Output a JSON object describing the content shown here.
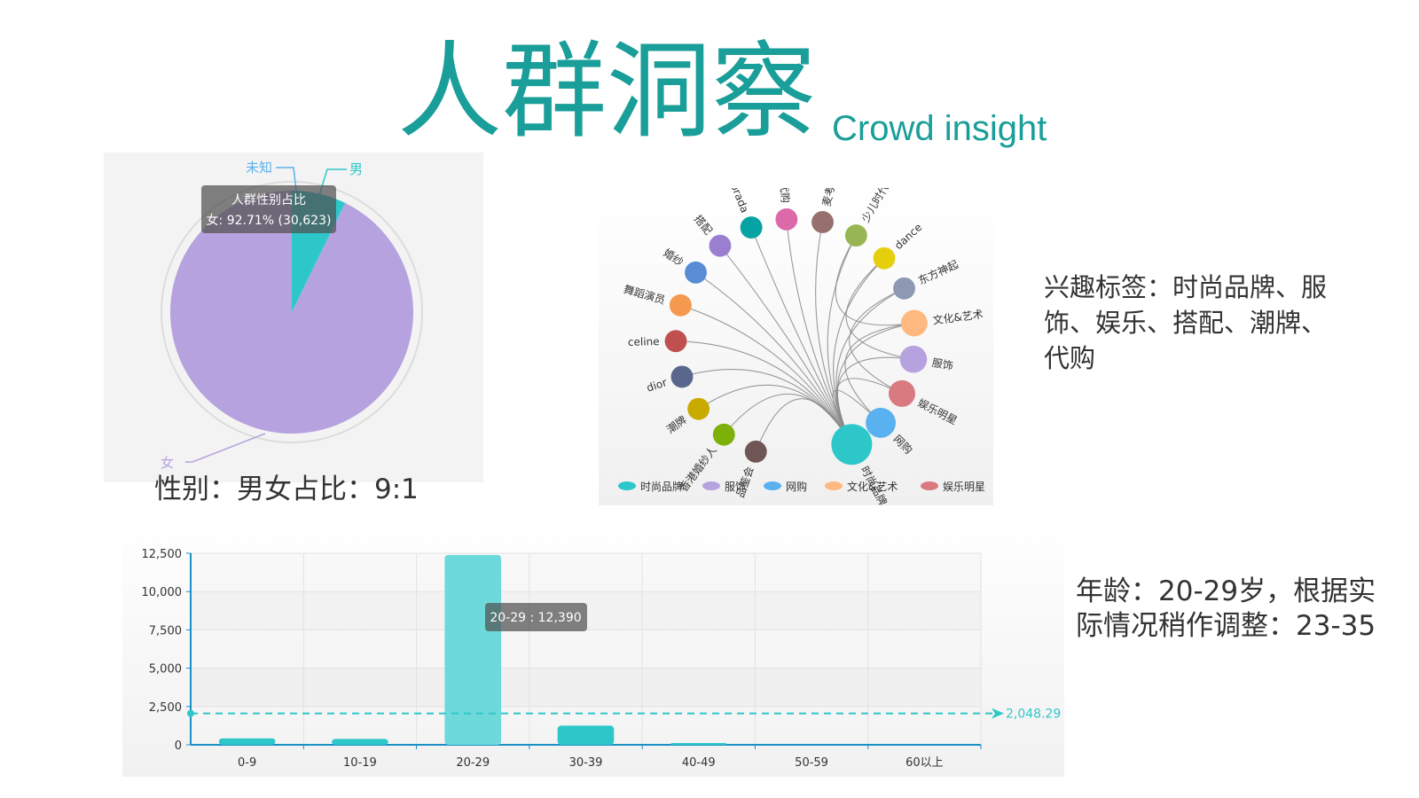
{
  "header": {
    "title_cn": "人群洞察",
    "title_en": "Crowd insight"
  },
  "colors": {
    "accent": "#1a9e99",
    "female": "#b6a2de",
    "male": "#2ec7c9",
    "unknown": "#5ab1ef"
  },
  "captions": {
    "gender": "性别：男女占比：9:1",
    "interest": "兴趣标签：时尚品牌、服饰、娱乐、搭配、潮牌、代购",
    "age": "年龄：20-29岁，根据实际情况稍作调整：23-35"
  },
  "chart_data": [
    {
      "type": "pie",
      "title": "",
      "slices": [
        {
          "name": "女",
          "value": 30623,
          "color": "#b6a2de"
        },
        {
          "name": "男",
          "value": 2380,
          "color": "#2ec7c9"
        },
        {
          "name": "未知",
          "value": 27,
          "color": "#5ab1ef"
        }
      ],
      "tooltip": {
        "title": "人群性别占比",
        "text": "女: 92.71% (30,623)"
      }
    },
    {
      "type": "graph",
      "center": "时尚品牌",
      "nodes": [
        {
          "name": "时尚品牌",
          "color": "#2ec7c9",
          "size": 1.0
        },
        {
          "name": "网购",
          "color": "#5ab1ef",
          "size": 0.62
        },
        {
          "name": "娱乐明星",
          "color": "#d87a80",
          "size": 0.5
        },
        {
          "name": "服饰",
          "color": "#b6a2de",
          "size": 0.52
        },
        {
          "name": "文化&艺术",
          "color": "#ffb980",
          "size": 0.5
        },
        {
          "name": "东方神起",
          "color": "#8d98b3",
          "size": 0.34
        },
        {
          "name": "dance",
          "color": "#e5cf0d",
          "size": 0.34
        },
        {
          "name": "少儿时代",
          "color": "#97b552",
          "size": 0.34
        },
        {
          "name": "麦考林",
          "color": "#95706d",
          "size": 0.34
        },
        {
          "name": "韩国代购",
          "color": "#dc69aa",
          "size": 0.34
        },
        {
          "name": "prada",
          "color": "#07a2a4",
          "size": 0.34
        },
        {
          "name": "搭配",
          "color": "#9a7fd1",
          "size": 0.34
        },
        {
          "name": "婚纱",
          "color": "#588dd5",
          "size": 0.34
        },
        {
          "name": "舞蹈演员",
          "color": "#f5994e",
          "size": 0.34
        },
        {
          "name": "celine",
          "color": "#c05050",
          "size": 0.34
        },
        {
          "name": "dior",
          "color": "#59678c",
          "size": 0.34
        },
        {
          "name": "潮牌",
          "color": "#c9ab00",
          "size": 0.34
        },
        {
          "name": "香港婚纱人",
          "color": "#7eb00a",
          "size": 0.34
        },
        {
          "name": "品鉴会",
          "color": "#6f5553",
          "size": 0.34
        }
      ],
      "legend": [
        "时尚品牌",
        "服饰",
        "网购",
        "文化&艺术",
        "娱乐明星"
      ],
      "legend_position": "bottom"
    },
    {
      "type": "bar",
      "categories": [
        "0-9",
        "10-19",
        "20-29",
        "30-39",
        "40-49",
        "50-59",
        "60以上"
      ],
      "values": [
        420,
        380,
        12390,
        1250,
        60,
        0,
        0
      ],
      "yticks": [
        "0",
        "2,500",
        "5,000",
        "7,500",
        "10,000",
        "12,500"
      ],
      "ylim": [
        0,
        12500
      ],
      "mark_line": {
        "value": 2048.29,
        "label": "2,048.29"
      },
      "tooltip": "20-29 : 12,390",
      "color": "#2ec7c9"
    }
  ]
}
